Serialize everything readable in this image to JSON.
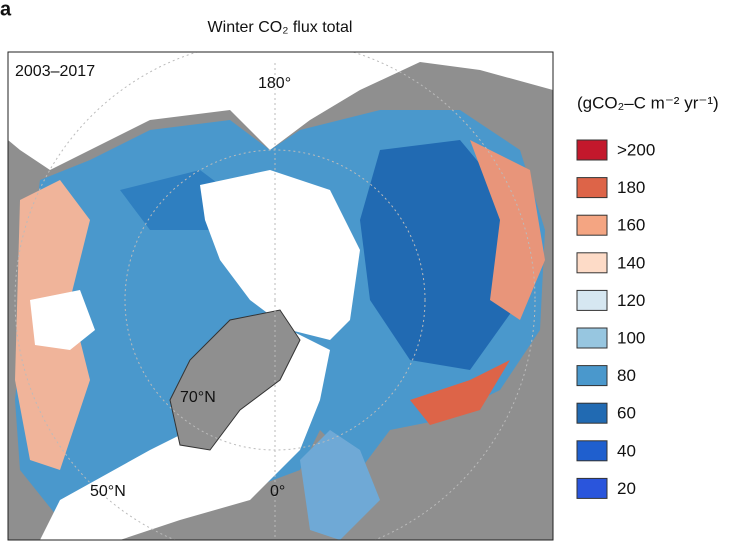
{
  "panel_label": "a",
  "title": "Winter CO₂ flux total",
  "period": "2003–2017",
  "map_labels": {
    "meridian_180": "180°",
    "lat_70": "70°N",
    "lat_50": "50°N",
    "meridian_0": "0°"
  },
  "legend": {
    "title": "(gCO₂–C m⁻² yr⁻¹)",
    "items": [
      {
        "label": ">200",
        "color": "#c3182c"
      },
      {
        "label": "180",
        "color": "#dd6448"
      },
      {
        "label": "160",
        "color": "#f4a582"
      },
      {
        "label": "140",
        "color": "#fddbc7"
      },
      {
        "label": "120",
        "color": "#d6e7f1"
      },
      {
        "label": "100",
        "color": "#97c6e0"
      },
      {
        "label": "80",
        "color": "#4a98cc"
      },
      {
        "label": "60",
        "color": "#216ab2"
      },
      {
        "label": "40",
        "color": "#1f5fce"
      },
      {
        "label": "20",
        "color": "#2a55dc"
      }
    ]
  }
}
